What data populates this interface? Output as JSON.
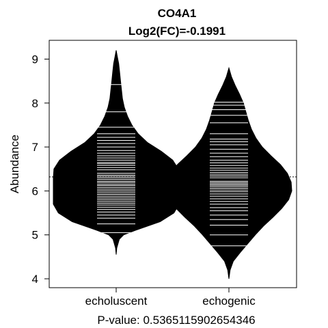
{
  "chart_data": {
    "type": "beanplot",
    "title": "CO4A1",
    "subtitle": "Log2(FC)=-0.1991",
    "xlabel": "P-value: 0.5365115902654346",
    "ylabel": "Abundance",
    "ylim": [
      3.8,
      9.35
    ],
    "yticks": [
      4,
      5,
      6,
      7,
      8,
      9
    ],
    "overall_mean": 6.32,
    "grid": false,
    "groups": [
      {
        "name": "echoluscent",
        "mean": 6.45,
        "tail_min": 4.55,
        "tail_max": 9.2,
        "density": [
          [
            4.55,
            0.0
          ],
          [
            4.7,
            0.01
          ],
          [
            4.9,
            0.05
          ],
          [
            5.0,
            0.12
          ],
          [
            5.1,
            0.3
          ],
          [
            5.3,
            0.7
          ],
          [
            5.5,
            0.92
          ],
          [
            5.7,
            1.0
          ],
          [
            5.9,
            1.0
          ],
          [
            6.1,
            1.0
          ],
          [
            6.3,
            1.0
          ],
          [
            6.5,
            0.99
          ],
          [
            6.7,
            0.9
          ],
          [
            6.9,
            0.72
          ],
          [
            7.1,
            0.5
          ],
          [
            7.3,
            0.35
          ],
          [
            7.5,
            0.25
          ],
          [
            7.7,
            0.18
          ],
          [
            7.9,
            0.13
          ],
          [
            8.1,
            0.1
          ],
          [
            8.3,
            0.085
          ],
          [
            8.5,
            0.07
          ],
          [
            8.7,
            0.055
          ],
          [
            8.9,
            0.04
          ],
          [
            9.05,
            0.02
          ],
          [
            9.2,
            0.0
          ]
        ],
        "observations": [
          5.05,
          5.25,
          5.38,
          5.45,
          5.52,
          5.58,
          5.63,
          5.68,
          5.72,
          5.76,
          5.8,
          5.84,
          5.88,
          5.92,
          5.96,
          6.0,
          6.04,
          6.08,
          6.12,
          6.15,
          6.19,
          6.22,
          6.26,
          6.3,
          6.33,
          6.36,
          6.4,
          6.44,
          6.48,
          6.53,
          6.58,
          6.62,
          6.65,
          6.7,
          6.75,
          6.8,
          6.86,
          6.92,
          7.0,
          7.08,
          7.15,
          7.22,
          7.3,
          7.45,
          7.8,
          8.42
        ]
      },
      {
        "name": "echogenic",
        "mean": 6.26,
        "tail_min": 4.0,
        "tail_max": 8.8,
        "density": [
          [
            4.0,
            0.0
          ],
          [
            4.2,
            0.02
          ],
          [
            4.4,
            0.07
          ],
          [
            4.6,
            0.18
          ],
          [
            4.8,
            0.3
          ],
          [
            5.0,
            0.42
          ],
          [
            5.2,
            0.55
          ],
          [
            5.4,
            0.7
          ],
          [
            5.6,
            0.84
          ],
          [
            5.8,
            0.95
          ],
          [
            6.0,
            1.0
          ],
          [
            6.2,
            0.99
          ],
          [
            6.4,
            0.93
          ],
          [
            6.6,
            0.82
          ],
          [
            6.8,
            0.67
          ],
          [
            7.0,
            0.53
          ],
          [
            7.2,
            0.43
          ],
          [
            7.4,
            0.36
          ],
          [
            7.6,
            0.31
          ],
          [
            7.8,
            0.27
          ],
          [
            8.0,
            0.23
          ],
          [
            8.2,
            0.17
          ],
          [
            8.4,
            0.1
          ],
          [
            8.6,
            0.04
          ],
          [
            8.8,
            0.0
          ]
        ],
        "observations": [
          4.75,
          5.0,
          5.22,
          5.35,
          5.45,
          5.55,
          5.62,
          5.7,
          5.76,
          5.82,
          5.88,
          5.93,
          5.98,
          6.02,
          6.06,
          6.1,
          6.13,
          6.16,
          6.19,
          6.22,
          6.26,
          6.3,
          6.34,
          6.38,
          6.42,
          6.47,
          6.52,
          6.58,
          6.64,
          6.7,
          6.78,
          6.86,
          6.95,
          7.05,
          7.12,
          7.18,
          7.3,
          7.55,
          7.72,
          7.85,
          7.95,
          8.02
        ]
      }
    ]
  }
}
